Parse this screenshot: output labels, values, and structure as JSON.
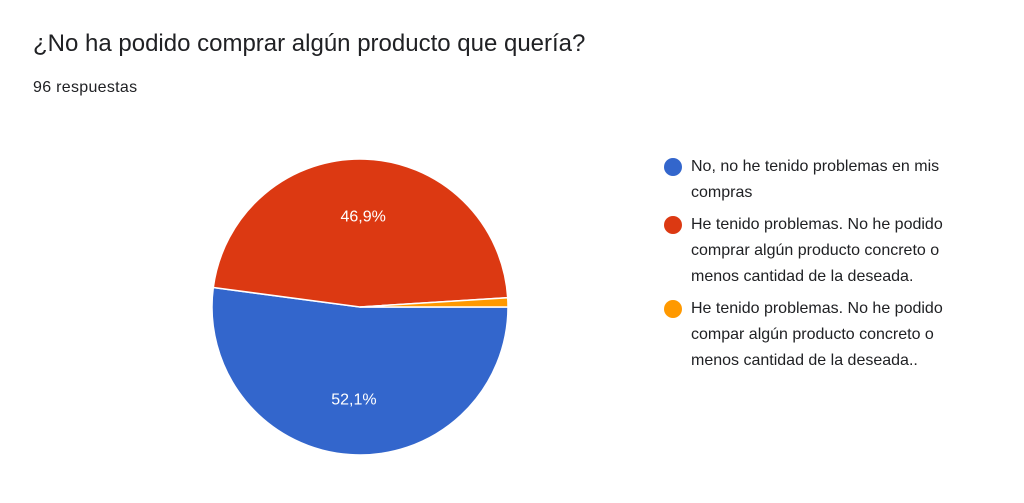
{
  "header": {
    "title": "¿No ha podido comprar algún producto que quería?",
    "responses": "96 respuestas"
  },
  "colors": {
    "blue": "#3366cc",
    "red": "#dc3912",
    "orange": "#ff9900"
  },
  "chart_data": {
    "type": "pie",
    "title": "¿No ha podido comprar algún producto que quería?",
    "total_responses": 96,
    "series": [
      {
        "name": "No, no he tenido problemas en mis compras",
        "value": 52.1,
        "label": "52,1%",
        "color": "#3366cc"
      },
      {
        "name": "He tenido problemas. No he podido comprar algún producto concreto o menos cantidad de la deseada.",
        "value": 46.9,
        "label": "46,9%",
        "color": "#dc3912"
      },
      {
        "name": "He tenido problemas. No he podido compar algún producto concreto o menos cantidad de la deseada..",
        "value": 1.0,
        "label": "",
        "color": "#ff9900"
      }
    ],
    "legend_position": "right"
  }
}
